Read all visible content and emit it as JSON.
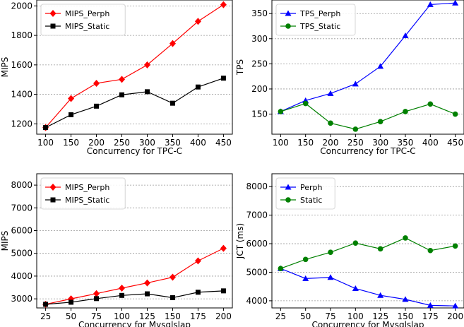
{
  "chart_data": [
    {
      "type": "line",
      "xlabel": "Concurrency for TPC-C",
      "ylabel": "MIPS",
      "x": [
        100,
        150,
        200,
        250,
        300,
        350,
        400,
        450
      ],
      "xticks": [
        "100",
        "150",
        "200",
        "250",
        "300",
        "350",
        "400",
        "450"
      ],
      "ylim": [
        1130,
        2040
      ],
      "yticks": [
        "1200",
        "1400",
        "1600",
        "1800",
        "2000"
      ],
      "grid": "horizontal",
      "legend_position": "top-left",
      "series": [
        {
          "name": "MIPS_Perph",
          "color": "#ff0000",
          "marker": "diamond",
          "values": [
            1175,
            1372,
            1475,
            1502,
            1600,
            1745,
            1895,
            2008
          ]
        },
        {
          "name": "MIPS_Static",
          "color": "#000000",
          "marker": "square",
          "values": [
            1175,
            1262,
            1320,
            1397,
            1418,
            1340,
            1450,
            1510
          ]
        }
      ]
    },
    {
      "type": "line",
      "xlabel": "Concurrency for TPC-C",
      "ylabel": "TPS",
      "x": [
        100,
        150,
        200,
        250,
        300,
        350,
        400,
        450
      ],
      "xticks": [
        "100",
        "150",
        "200",
        "250",
        "300",
        "350",
        "400",
        "450"
      ],
      "ylim": [
        110,
        377
      ],
      "yticks": [
        "150",
        "200",
        "250",
        "300",
        "350"
      ],
      "grid": "horizontal",
      "legend_position": "top-left",
      "series": [
        {
          "name": "TPS_Perph",
          "color": "#0000ff",
          "marker": "triangle",
          "values": [
            155,
            177,
            191,
            210,
            245,
            306,
            368,
            371
          ]
        },
        {
          "name": "TPS_Static",
          "color": "#008000",
          "marker": "circle",
          "values": [
            155,
            171,
            132,
            120,
            135,
            155,
            170,
            150
          ]
        }
      ]
    },
    {
      "type": "line",
      "xlabel": "Concurrency for Mysqlslap",
      "ylabel": "MIPS",
      "x": [
        25,
        50,
        75,
        100,
        125,
        150,
        175,
        200
      ],
      "xticks": [
        "25",
        "50",
        "75",
        "100",
        "125",
        "150",
        "175",
        "200"
      ],
      "ylim": [
        2600,
        8500
      ],
      "yticks": [
        "3000",
        "4000",
        "5000",
        "6000",
        "7000",
        "8000"
      ],
      "grid": "horizontal",
      "legend_position": "top-left",
      "series": [
        {
          "name": "MIPS_Perph",
          "color": "#ff0000",
          "marker": "diamond",
          "values": [
            2760,
            3000,
            3230,
            3470,
            3700,
            3950,
            4670,
            5220
          ]
        },
        {
          "name": "MIPS_Static",
          "color": "#000000",
          "marker": "square",
          "values": [
            2760,
            2850,
            3010,
            3150,
            3220,
            3050,
            3290,
            3350
          ]
        }
      ]
    },
    {
      "type": "line",
      "xlabel": "Concurrency for Mysqlslap",
      "ylabel": "JCT (ms)",
      "x": [
        25,
        50,
        75,
        100,
        125,
        150,
        175,
        200
      ],
      "xticks": [
        "25",
        "50",
        "75",
        "100",
        "125",
        "150",
        "175",
        "200"
      ],
      "ylim": [
        3750,
        8450
      ],
      "yticks": [
        "4000",
        "5000",
        "6000",
        "7000",
        "8000"
      ],
      "grid": "horizontal",
      "legend_position": "top-left",
      "series": [
        {
          "name": "Perph",
          "color": "#0000ff",
          "marker": "triangle",
          "values": [
            5130,
            4780,
            4820,
            4430,
            4190,
            4050,
            3840,
            3820
          ]
        },
        {
          "name": "Static",
          "color": "#008000",
          "marker": "circle",
          "values": [
            5130,
            5450,
            5700,
            6020,
            5820,
            6200,
            5760,
            5920
          ]
        }
      ]
    }
  ]
}
